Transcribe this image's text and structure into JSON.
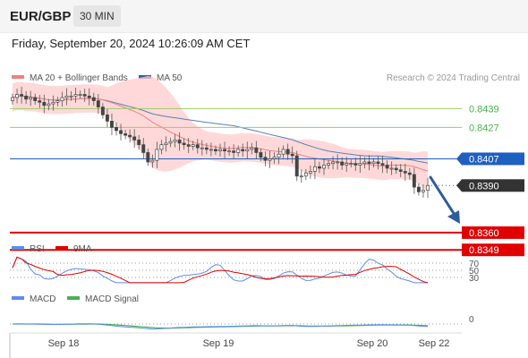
{
  "header": {
    "symbol": "EUR/GBP",
    "timeframe": "30 MIN",
    "datetime": "Friday, September 20, 2024 10:26:09 AM CET"
  },
  "legend": {
    "items": [
      {
        "label": "MA 20 + Bollinger Bands",
        "color": "#f08080"
      },
      {
        "label": "MA 50",
        "color": "#2e5c9a"
      }
    ],
    "credit": "Research © 2024 Trading Central"
  },
  "colors": {
    "resistance": "#9ccc65",
    "pivot": "#1f5fbf",
    "support": "#e00000",
    "last": "#333333",
    "bollinger": "#ffcccc",
    "ma20": "#f08080",
    "ma50": "#5a7fb0",
    "arrow": "#2e5c9a",
    "rsi": "#5b8def",
    "nine_ma": "#e00000",
    "macd": "#5b8def",
    "macd_signal": "#4caf50"
  },
  "chart_data": [
    {
      "type": "candlestick",
      "title": "EUR/GBP",
      "ylim": [
        0.834,
        0.8454
      ],
      "x_labels": [
        "Sep 18",
        "Sep 19",
        "Sep 20",
        "Sep 22"
      ],
      "levels": [
        {
          "label": "0.8439",
          "value": 0.8439,
          "kind": "resistance"
        },
        {
          "label": "0.8427",
          "value": 0.8427,
          "kind": "resistance"
        },
        {
          "label": "0.8407",
          "value": 0.8407,
          "kind": "pivot"
        },
        {
          "label": "0.8390",
          "value": 0.839,
          "kind": "last"
        },
        {
          "label": "0.8360",
          "value": 0.836,
          "kind": "support"
        },
        {
          "label": "0.8349",
          "value": 0.8349,
          "kind": "support"
        }
      ],
      "close": [
        0.8446,
        0.8448,
        0.8447,
        0.8445,
        0.8446,
        0.8444,
        0.8443,
        0.8441,
        0.8442,
        0.8443,
        0.8444,
        0.8446,
        0.8447,
        0.8447,
        0.8448,
        0.8448,
        0.8447,
        0.8446,
        0.8444,
        0.844,
        0.8435,
        0.8431,
        0.8427,
        0.8425,
        0.8423,
        0.8422,
        0.8421,
        0.8419,
        0.8416,
        0.8411,
        0.8405,
        0.8406,
        0.8413,
        0.8416,
        0.8417,
        0.8418,
        0.8419,
        0.8417,
        0.8416,
        0.8415,
        0.8416,
        0.8414,
        0.8414,
        0.8413,
        0.8413,
        0.8412,
        0.8413,
        0.8412,
        0.8412,
        0.8411,
        0.8413,
        0.8412,
        0.8413,
        0.8414,
        0.8411,
        0.8408,
        0.8406,
        0.8407,
        0.8408,
        0.841,
        0.8413,
        0.841,
        0.8409,
        0.8396,
        0.8396,
        0.8398,
        0.8399,
        0.8402,
        0.8401,
        0.8403,
        0.8404,
        0.8405,
        0.8405,
        0.8403,
        0.8404,
        0.8404,
        0.8403,
        0.8404,
        0.8405,
        0.8404,
        0.8405,
        0.8404,
        0.8403,
        0.8401,
        0.8401,
        0.84,
        0.8399,
        0.8398,
        0.8397,
        0.8389,
        0.8386,
        0.8387,
        0.839
      ],
      "series": [
        {
          "name": "MA 20 + Bollinger Bands"
        },
        {
          "name": "MA 50"
        }
      ]
    },
    {
      "type": "line",
      "title": "RSI",
      "series": [
        {
          "name": "RSI"
        },
        {
          "name": "9MA"
        }
      ],
      "ylim": [
        20,
        80
      ],
      "ticks": [
        70,
        50,
        30
      ]
    },
    {
      "type": "line",
      "title": "MACD",
      "series": [
        {
          "name": "MACD"
        },
        {
          "name": "MACD Signal"
        }
      ],
      "ticks": [
        0
      ]
    }
  ],
  "rsi_panel": {
    "legend": [
      {
        "label": "RSI",
        "color": "#5b8def"
      },
      {
        "label": "9MA",
        "color": "#e00000"
      }
    ],
    "tick_labels": [
      "70",
      "50",
      "30"
    ]
  },
  "macd_panel": {
    "legend": [
      {
        "label": "MACD",
        "color": "#5b8def"
      },
      {
        "label": "MACD Signal",
        "color": "#4caf50"
      }
    ],
    "tick_labels": [
      "0"
    ]
  }
}
